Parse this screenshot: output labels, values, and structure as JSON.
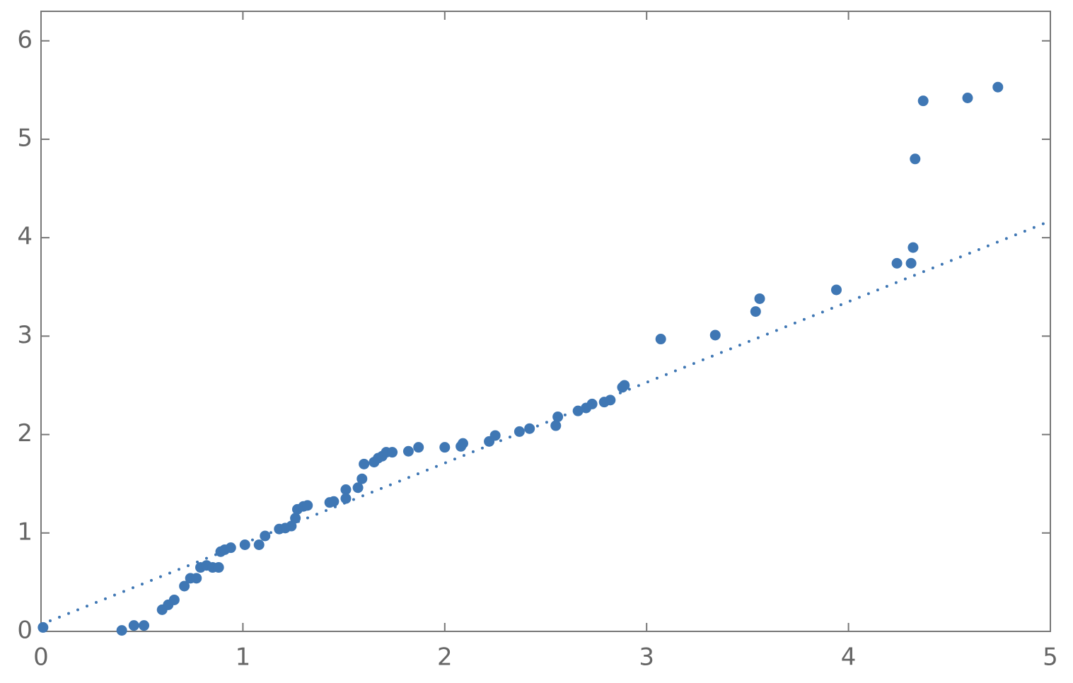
{
  "chart_data": {
    "type": "scatter",
    "xlim": [
      0,
      5
    ],
    "ylim": [
      0,
      6.3
    ],
    "xticks": [
      0,
      1,
      2,
      3,
      4,
      5
    ],
    "yticks": [
      0,
      1,
      2,
      3,
      4,
      5,
      6
    ],
    "series": [
      {
        "style": "points",
        "color": "#3f77b4",
        "x": [
          0.01,
          0.4,
          0.46,
          0.51,
          0.6,
          0.63,
          0.66,
          0.71,
          0.74,
          0.77,
          0.79,
          0.82,
          0.85,
          0.88,
          0.89,
          0.91,
          0.94,
          1.01,
          1.08,
          1.11,
          1.18,
          1.21,
          1.24,
          1.26,
          1.27,
          1.3,
          1.32,
          1.43,
          1.45,
          1.51,
          1.51,
          1.57,
          1.59,
          1.6,
          1.65,
          1.67,
          1.69,
          1.71,
          1.74,
          1.82,
          1.87,
          2.0,
          2.08,
          2.09,
          2.22,
          2.25,
          2.37,
          2.42,
          2.55,
          2.56,
          2.66,
          2.7,
          2.73,
          2.79,
          2.82,
          2.88,
          2.89,
          3.07,
          3.34,
          3.54,
          3.56,
          3.94,
          4.24,
          4.31,
          4.32,
          4.33,
          4.37,
          4.59,
          4.74
        ],
        "values": [
          0.04,
          0.01,
          0.06,
          0.06,
          0.22,
          0.27,
          0.32,
          0.46,
          0.54,
          0.54,
          0.65,
          0.67,
          0.65,
          0.65,
          0.81,
          0.83,
          0.85,
          0.88,
          0.88,
          0.97,
          1.04,
          1.05,
          1.07,
          1.15,
          1.24,
          1.27,
          1.28,
          1.31,
          1.32,
          1.44,
          1.35,
          1.46,
          1.55,
          1.7,
          1.72,
          1.76,
          1.78,
          1.82,
          1.82,
          1.83,
          1.87,
          1.87,
          1.88,
          1.91,
          1.93,
          1.99,
          2.03,
          2.06,
          2.09,
          2.18,
          2.24,
          2.27,
          2.31,
          2.33,
          2.35,
          2.48,
          2.5,
          2.97,
          3.01,
          3.25,
          3.38,
          3.47,
          3.74,
          3.74,
          3.9,
          4.8,
          5.39,
          5.42,
          5.53
        ]
      },
      {
        "style": "dotted",
        "color": "#3f77b4",
        "x": [
          0,
          5
        ],
        "values": [
          0.07,
          4.17
        ]
      }
    ]
  }
}
